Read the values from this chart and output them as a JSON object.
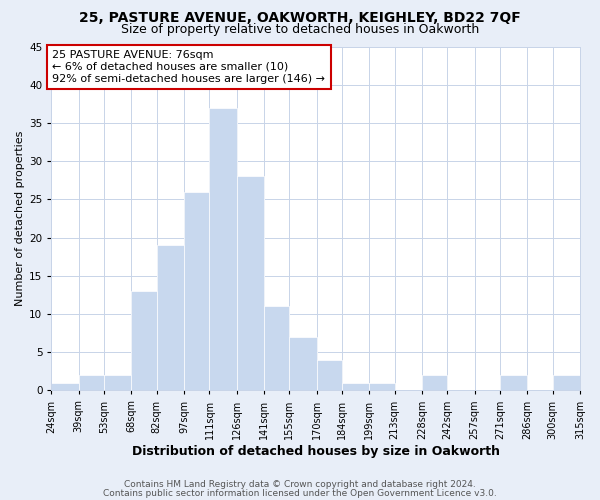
{
  "title1": "25, PASTURE AVENUE, OAKWORTH, KEIGHLEY, BD22 7QF",
  "title2": "Size of property relative to detached houses in Oakworth",
  "xlabel": "Distribution of detached houses by size in Oakworth",
  "ylabel": "Number of detached properties",
  "bin_edges": [
    24,
    39,
    53,
    68,
    82,
    97,
    111,
    126,
    141,
    155,
    170,
    184,
    199,
    213,
    228,
    242,
    257,
    271,
    286,
    300,
    315
  ],
  "bin_counts": [
    1,
    2,
    2,
    13,
    19,
    26,
    37,
    28,
    11,
    7,
    4,
    1,
    1,
    0,
    2,
    0,
    0,
    2,
    0,
    2
  ],
  "tick_labels": [
    "24sqm",
    "39sqm",
    "53sqm",
    "68sqm",
    "82sqm",
    "97sqm",
    "111sqm",
    "126sqm",
    "141sqm",
    "155sqm",
    "170sqm",
    "184sqm",
    "199sqm",
    "213sqm",
    "228sqm",
    "242sqm",
    "257sqm",
    "271sqm",
    "286sqm",
    "300sqm",
    "315sqm"
  ],
  "bar_color": "#c8d8ee",
  "bar_edge_color": "#ffffff",
  "grid_color": "#c8d4e8",
  "annotation_box_text": "25 PASTURE AVENUE: 76sqm\n← 6% of detached houses are smaller (10)\n92% of semi-detached houses are larger (146) →",
  "annotation_box_facecolor": "#ffffff",
  "annotation_box_edgecolor": "#cc0000",
  "ylim": [
    0,
    45
  ],
  "yticks": [
    0,
    5,
    10,
    15,
    20,
    25,
    30,
    35,
    40,
    45
  ],
  "footnote1": "Contains HM Land Registry data © Crown copyright and database right 2024.",
  "footnote2": "Contains public sector information licensed under the Open Government Licence v3.0.",
  "background_color": "#e8eef8",
  "plot_background_color": "#ffffff",
  "title1_fontsize": 10,
  "title2_fontsize": 9,
  "xlabel_fontsize": 9,
  "ylabel_fontsize": 8,
  "tick_fontsize": 7,
  "annot_fontsize": 8,
  "footnote_fontsize": 6.5
}
